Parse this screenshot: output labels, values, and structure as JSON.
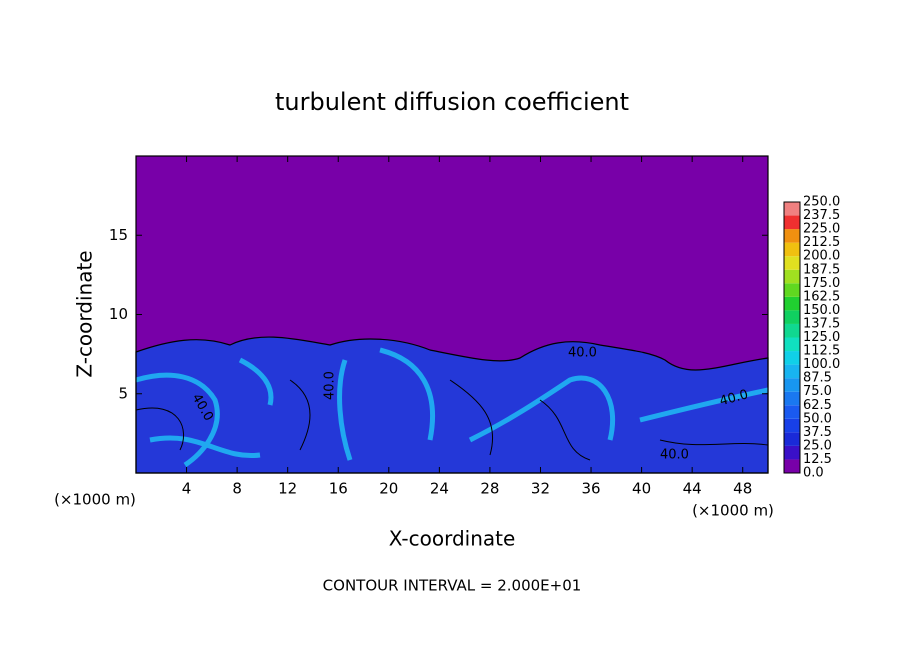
{
  "chart_data": {
    "type": "contour",
    "title": "turbulent diffusion coefficient",
    "xlabel": "X-coordinate",
    "ylabel": "Z-coordinate",
    "xunit": "(×1000 m)",
    "yunit": "(×1000 m)",
    "footer": "CONTOUR INTERVAL = 2.000E+01",
    "xlim": [
      0,
      50
    ],
    "xticks": [
      4,
      8,
      12,
      16,
      20,
      24,
      28,
      32,
      36,
      40,
      44,
      48
    ],
    "ylim": [
      0,
      20
    ],
    "yticks": [
      5,
      10,
      15
    ],
    "contour_labels": [
      "40.0",
      "40.0",
      "40.0",
      "40.0",
      "40.0"
    ],
    "colorbar": {
      "levels": [
        {
          "value": 0,
          "label": "0.0"
        },
        {
          "value": 12.5,
          "label": "12.5"
        },
        {
          "value": 25,
          "label": "25.0"
        },
        {
          "value": 37.5,
          "label": "37.5"
        },
        {
          "value": 50,
          "label": "50.0"
        },
        {
          "value": 62.5,
          "label": "62.5"
        },
        {
          "value": 75,
          "label": "75.0"
        },
        {
          "value": 87.5,
          "label": "87.5"
        },
        {
          "value": 100,
          "label": "100.0"
        },
        {
          "value": 112.5,
          "label": "112.5"
        },
        {
          "value": 125,
          "label": "125.0"
        },
        {
          "value": 137.5,
          "label": "137.5"
        },
        {
          "value": 150,
          "label": "150.0"
        },
        {
          "value": 162.5,
          "label": "162.5"
        },
        {
          "value": 175,
          "label": "175.0"
        },
        {
          "value": 187.5,
          "label": "187.5"
        },
        {
          "value": 200,
          "label": "200.0"
        },
        {
          "value": 212.5,
          "label": "212.5"
        },
        {
          "value": 225,
          "label": "225.0"
        },
        {
          "value": 237.5,
          "label": "237.5"
        },
        {
          "value": 250,
          "label": "250.0"
        }
      ],
      "colors": [
        "#7800a8",
        "#3a10c8",
        "#1a2ad8",
        "#1840e8",
        "#1a5af0",
        "#1a78f0",
        "#1896f0",
        "#18b4f0",
        "#10d0e8",
        "#10e0c0",
        "#10d890",
        "#10d060",
        "#20d030",
        "#60d820",
        "#a0e020",
        "#e0e020",
        "#f0c010",
        "#f09010",
        "#f03030",
        "#f08080"
      ]
    }
  }
}
